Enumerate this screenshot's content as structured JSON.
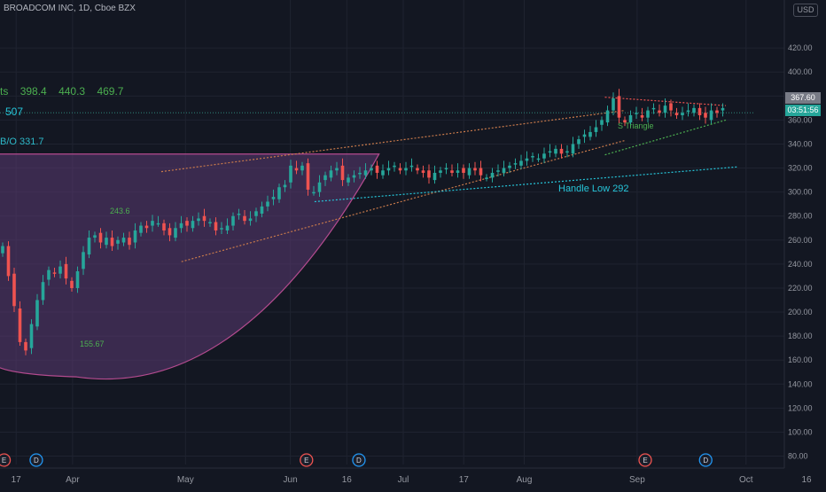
{
  "header": {
    "symbol_title": "BROADCOM INC, 1D, Cboe BZX",
    "currency": "USD",
    "last_price": "367.60",
    "countdown": "03:51:56"
  },
  "annotations": {
    "targets_prefix": "ts",
    "targets": [
      "398.4",
      "440.3",
      "469.7"
    ],
    "level_507": "507",
    "breakout": "B/O 331.7",
    "triangle": "S Triangle",
    "handle_low": "Handle Low 292",
    "high_label": "243.6",
    "low_label": "155.67"
  },
  "events": [
    {
      "kind": "E",
      "index": 1
    },
    {
      "kind": "D",
      "index": 9
    },
    {
      "kind": "E",
      "index": 76
    },
    {
      "kind": "D",
      "index": 89
    },
    {
      "kind": "E",
      "index": 160
    },
    {
      "kind": "D",
      "index": 175
    }
  ],
  "colors": {
    "background": "#131722",
    "up": "#26a69a",
    "down": "#ef5350",
    "cup_fill": "#5b3a73",
    "cup_line": "#b44b8f"
  },
  "chart_data": {
    "type": "candlestick",
    "title": "BROADCOM INC, 1D, Cboe BZX",
    "ylim": [
      73,
      460
    ],
    "y_ticks": [
      420,
      400,
      380,
      360,
      340,
      320,
      300,
      280,
      260,
      240,
      220,
      200,
      180,
      160,
      140,
      120,
      100,
      80
    ],
    "y_tick_labels": [
      "420.00",
      "400.00",
      "380.00",
      "360.00",
      "340.00",
      "320.00",
      "300.00",
      "280.00",
      "260.00",
      "240.00",
      "220.00",
      "200.00",
      "180.00",
      "160.00",
      "140.00",
      "120.00",
      "100.00",
      "80.00"
    ],
    "x_ticks": [
      {
        "index": 4,
        "label": "17"
      },
      {
        "index": 18,
        "label": "Apr"
      },
      {
        "index": 46,
        "label": "May"
      },
      {
        "index": 72,
        "label": "Jun"
      },
      {
        "index": 86,
        "label": "16"
      },
      {
        "index": 100,
        "label": "Jul"
      },
      {
        "index": 115,
        "label": "17"
      },
      {
        "index": 130,
        "label": "Aug"
      },
      {
        "index": 158,
        "label": "Sep"
      },
      {
        "index": 185,
        "label": "Oct"
      },
      {
        "index": 200,
        "label": "16"
      }
    ],
    "current_price": 367.6,
    "close": [
      255.0,
      230.0,
      205.0,
      175.0,
      168.0,
      190.0,
      210.0,
      225.0,
      235.0,
      232.0,
      238.0,
      228.0,
      220.0,
      234.0,
      250.0,
      262.0,
      264.0,
      258.0,
      262.0,
      255.0,
      260.0,
      262.0,
      256.0,
      268.0,
      272.0,
      270.0,
      276.0,
      274.0,
      268.0,
      264.0,
      270.0,
      274.0,
      272.0,
      276.0,
      278.0,
      276.0,
      275.0,
      268.0,
      270.0,
      272.0,
      280.0,
      282.0,
      276.0,
      278.0,
      284.0,
      288.0,
      292.0,
      296.0,
      304.0,
      306.0,
      322.0,
      318.0,
      322.0,
      302.0,
      300.0,
      308.0,
      314.0,
      318.0,
      320.0,
      310.0,
      312.0,
      314.0,
      316.0,
      318.0,
      320.0,
      316.0,
      318.0,
      320.0,
      322.0,
      318.0,
      320.0,
      322.0,
      318.0,
      316.0,
      312.0,
      316.0,
      318.0,
      320.0,
      316.0,
      318.0,
      316.0,
      320.0,
      318.0,
      314.0,
      312.0,
      316.0,
      318.0,
      320.0,
      322.0,
      324.0,
      326.0,
      328.0,
      330.0,
      328.0,
      332.0,
      334.0,
      336.0,
      332.0,
      334.0,
      340.0,
      344.0,
      348.0,
      350.0,
      354.0,
      360.0,
      368.0,
      378.0,
      362.0,
      358.0,
      364.0,
      366.0,
      362.0,
      368.0,
      370.0,
      366.0,
      372.0,
      368.0,
      364.0,
      366.0,
      368.0,
      370.0,
      364.0,
      362.0,
      368.0,
      366.0,
      370.0
    ],
    "note_series": "daily closes; open/high/low derived approximately"
  }
}
